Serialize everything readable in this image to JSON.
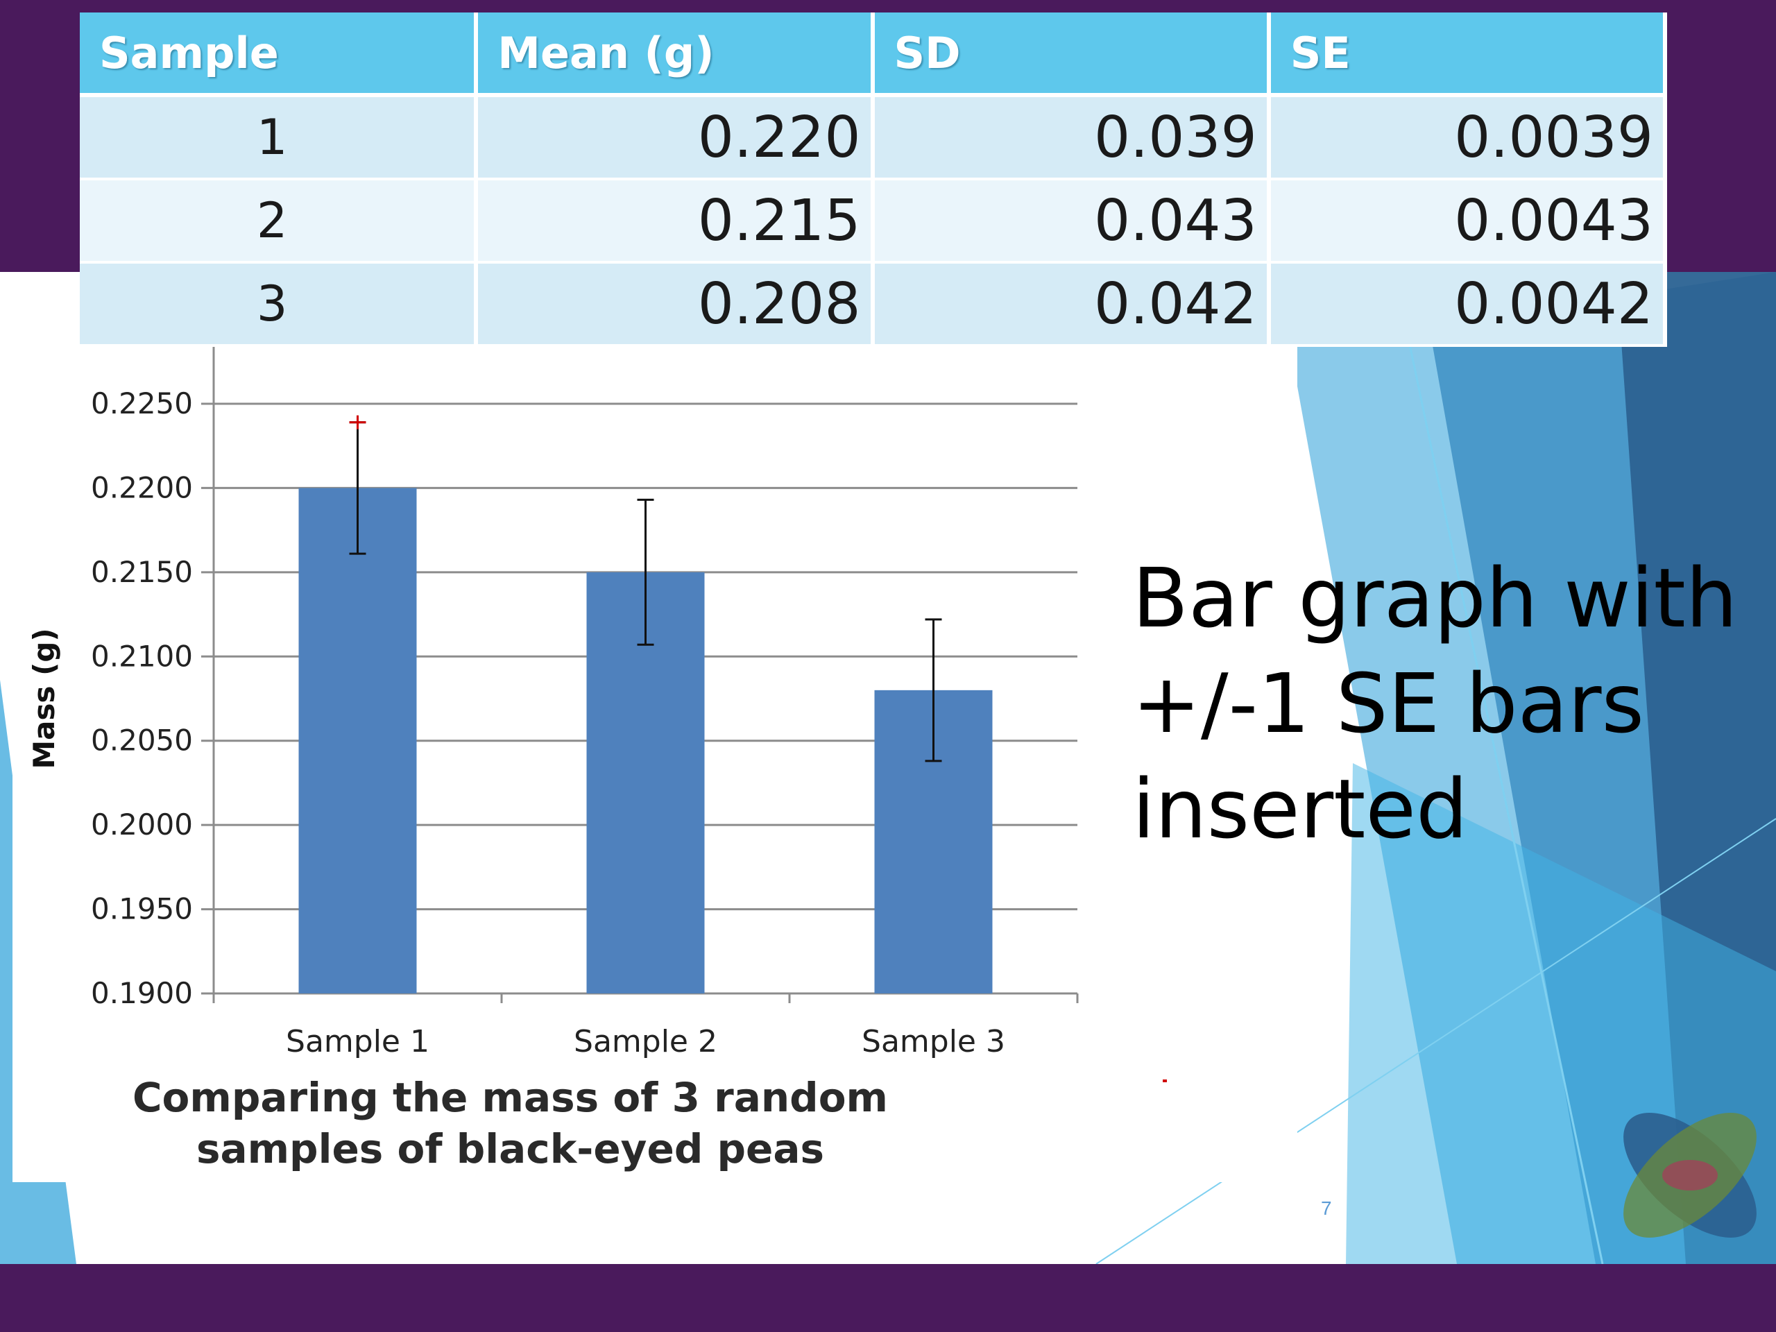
{
  "table": {
    "headers": [
      "Sample",
      "Mean  (g)",
      "SD",
      "SE"
    ],
    "rows": [
      [
        "1",
        "0.220",
        "0.039",
        "0.0039"
      ],
      [
        "2",
        "0.215",
        "0.043",
        "0.0043"
      ],
      [
        "3",
        "0.208",
        "0.042",
        "0.0042"
      ]
    ]
  },
  "chart_data": {
    "type": "bar",
    "categories": [
      "Sample 1",
      "Sample 2",
      "Sample 3"
    ],
    "values": [
      0.22,
      0.215,
      0.208
    ],
    "error_plus_minus": [
      0.0039,
      0.0043,
      0.0042
    ],
    "title": "Comparing the mass of 3 random samples of black-eyed peas",
    "title_lines": [
      "Comparing the mass of 3 random",
      "samples of black-eyed peas"
    ],
    "xlabel": "",
    "ylabel": "Mass  (g)",
    "ylim": [
      0.19,
      0.225
    ],
    "yticks": [
      0.19,
      0.195,
      0.2,
      0.205,
      0.21,
      0.215,
      0.22,
      0.225
    ],
    "ytick_labels": [
      "0.1900",
      "0.1950",
      "0.2000",
      "0.2050",
      "0.2100",
      "0.2150",
      "0.2200",
      "0.2250"
    ],
    "grid": true,
    "legend": "none",
    "bar_color": "#4f81bd"
  },
  "side_text": {
    "lines": [
      "Bar graph with",
      "+/-1 SE bars",
      "inserted"
    ]
  },
  "slide_number": "7",
  "theme": {
    "band_color": "#4a1a5c",
    "header_color": "#5ec8ec",
    "accent_blue": "#2a9fd8"
  }
}
